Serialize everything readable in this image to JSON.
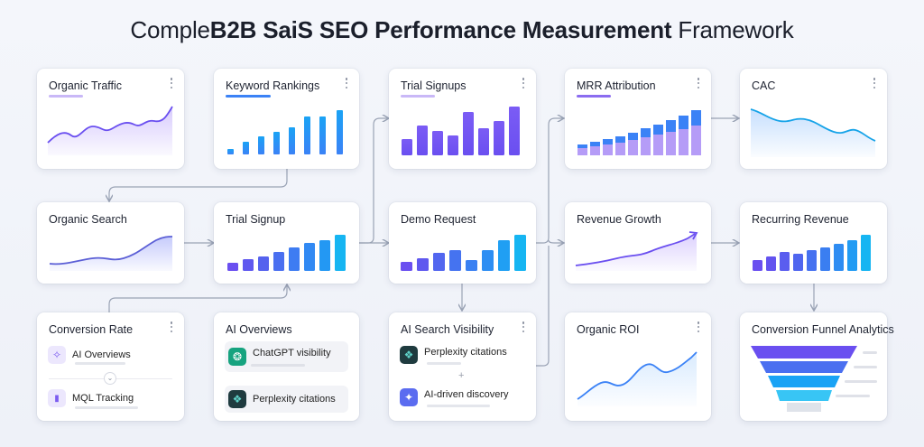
{
  "title": {
    "part1": "Comple",
    "part2": "B2B SaiS SEO Performance Measurement",
    "part3": " Framework"
  },
  "colors": {
    "purple": "#8b6cf0",
    "violet": "#6a4ff0",
    "blue": "#3b82f6",
    "cyan": "#16b5f2",
    "line": "#5b5fd6",
    "connector": "#9aa3b5"
  },
  "cards": {
    "organic_traffic": {
      "title": "Organic Traffic"
    },
    "keyword_rankings": {
      "title": "Keyword Rankings"
    },
    "trial_signups": {
      "title": "Trial Signups"
    },
    "mrr_attribution": {
      "title": "MRR Attribution"
    },
    "cac": {
      "title": "CAC"
    },
    "organic_search": {
      "title": "Organic Search"
    },
    "trial_signup": {
      "title": "Trial Signup"
    },
    "demo_request": {
      "title": "Demo Request"
    },
    "revenue_growth": {
      "title": "Revenue Growth"
    },
    "recurring_revenue": {
      "title": "Recurring Revenue"
    },
    "conversion_rate": {
      "title": "Conversion Rate",
      "items": [
        {
          "label": "AI Overviews",
          "icon": "sparkle-icon"
        },
        {
          "label": "MQL Tracking",
          "icon": "bar-chart-icon"
        }
      ]
    },
    "ai_overviews": {
      "title": "AI Overviews",
      "items": [
        {
          "label": "ChatGPT visibility",
          "icon": "chatgpt-icon"
        },
        {
          "label": "Perplexity citations",
          "icon": "perplexity-icon"
        }
      ]
    },
    "ai_search_visibility": {
      "title": "AI Search Visibility",
      "items": [
        {
          "label": "Perplexity citations",
          "icon": "perplexity-icon"
        },
        {
          "label": "AI-driven discovery",
          "icon": "gemini-sparkle-icon"
        }
      ]
    },
    "organic_roi": {
      "title": "Organic ROI"
    },
    "conversion_funnel": {
      "title": "Conversion Funnel Analytics"
    }
  }
}
